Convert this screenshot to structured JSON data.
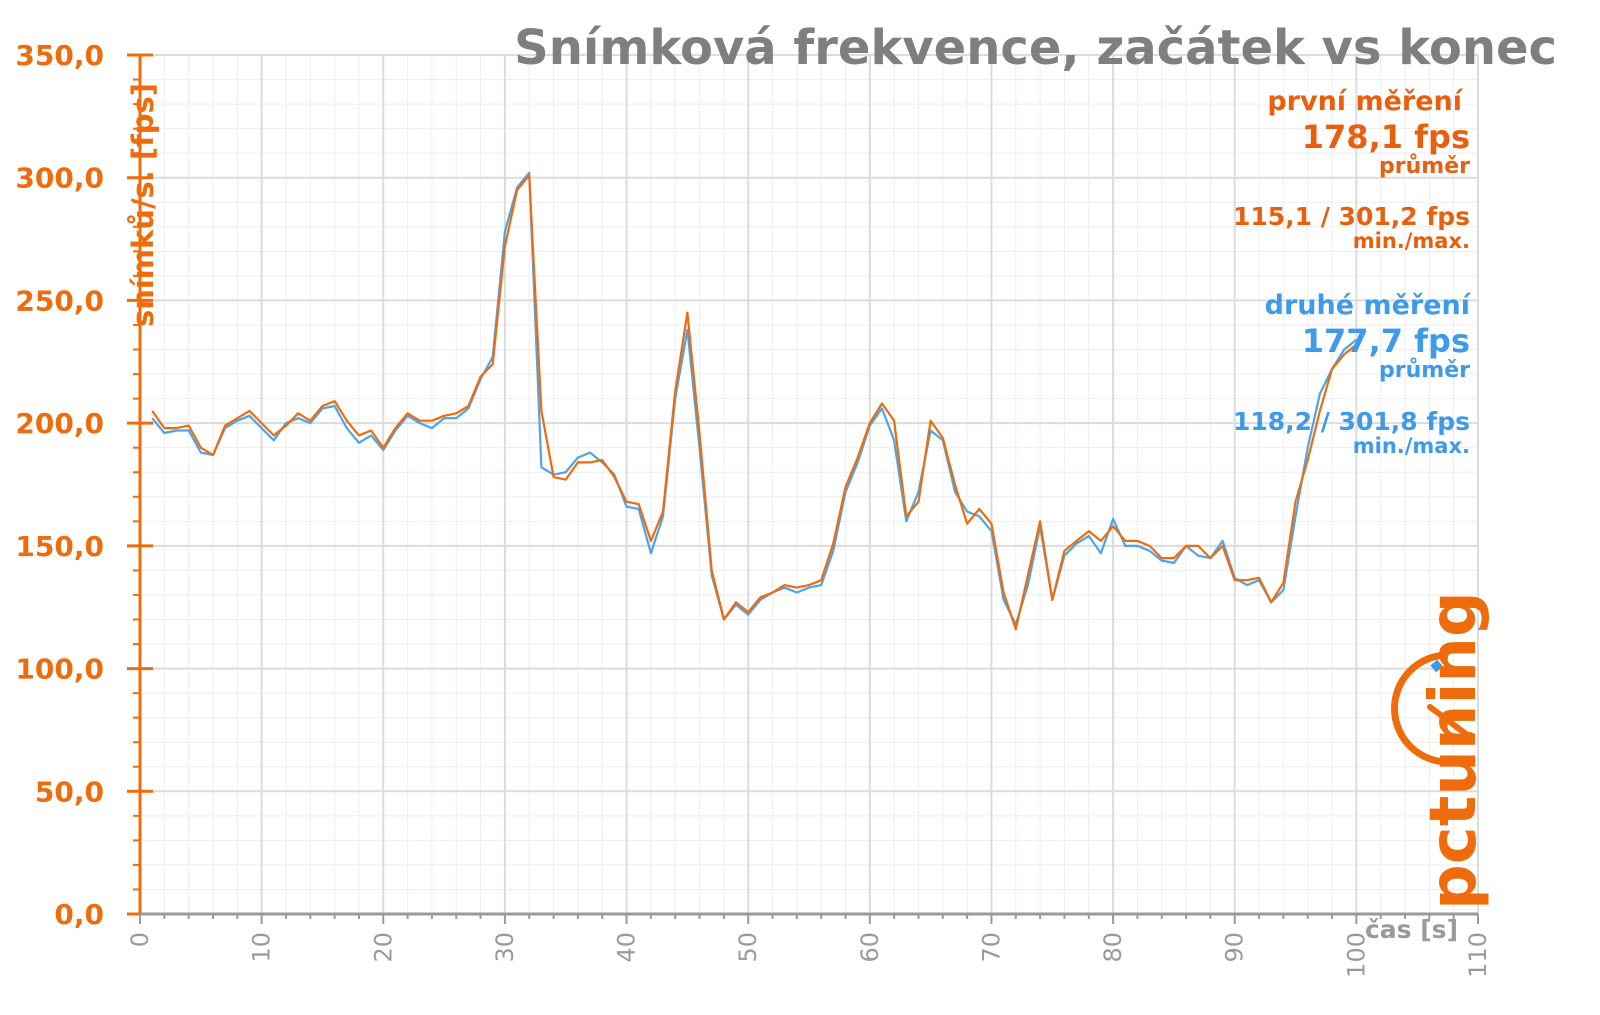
{
  "colors": {
    "first": "#ef6c0c",
    "second": "#4da3ec",
    "grid_major": "#dcdcdc",
    "grid_minor": "#eeeeee",
    "title": "#7f7f7f",
    "x_axis": "#9a9a9a"
  },
  "logo": {
    "text": "pctuning"
  },
  "annotations": {
    "first_label": "první měření",
    "first_avg": "178,1 fps",
    "first_avg_caption": "průměr",
    "first_minmax": "115,1 / 301,2 fps",
    "first_minmax_caption": "min./max.",
    "second_label": "druhé měření",
    "second_avg": "177,7 fps",
    "second_avg_caption": "průměr",
    "second_minmax": "118,2 / 301,8 fps",
    "second_minmax_caption": "min./max."
  },
  "chart_data": {
    "type": "line",
    "title": "Snímková frekvence, začátek vs konec",
    "xlabel": "čas [s]",
    "ylabel": "snímků/s. [fps]",
    "xlim": [
      0,
      110
    ],
    "ylim": [
      0,
      350
    ],
    "xticks": [
      0,
      10,
      20,
      30,
      40,
      50,
      60,
      70,
      80,
      90,
      100,
      110
    ],
    "xtick_labels": [
      "0",
      "10",
      "20",
      "30",
      "40",
      "50",
      "60",
      "70",
      "80",
      "90",
      "100",
      "110"
    ],
    "yticks": [
      0,
      50,
      100,
      150,
      200,
      250,
      300,
      350
    ],
    "ytick_labels": [
      "0,0",
      "50,0",
      "100,0",
      "150,0",
      "200,0",
      "250,0",
      "300,0",
      "350,0"
    ],
    "grid": true,
    "series": [
      {
        "name": "první měření",
        "color": "#ef6c0c",
        "x": [
          1,
          2,
          3,
          4,
          5,
          6,
          7,
          8,
          9,
          10,
          11,
          12,
          13,
          14,
          15,
          16,
          17,
          18,
          19,
          20,
          21,
          22,
          23,
          24,
          25,
          26,
          27,
          28,
          29,
          30,
          31,
          32,
          33,
          34,
          35,
          36,
          37,
          38,
          39,
          40,
          41,
          42,
          43,
          44,
          45,
          46,
          47,
          48,
          49,
          50,
          51,
          52,
          53,
          54,
          55,
          56,
          57,
          58,
          59,
          60,
          61,
          62,
          63,
          64,
          65,
          66,
          67,
          68,
          69,
          70,
          71,
          72,
          73,
          74,
          75,
          76,
          77,
          78,
          79,
          80,
          81,
          82,
          83,
          84,
          85,
          86,
          87,
          88,
          89,
          90,
          91,
          92,
          93,
          94,
          95,
          96,
          97,
          98,
          99,
          100
        ],
        "y": [
          205,
          198,
          198,
          199,
          190,
          187,
          199,
          202,
          205,
          200,
          195,
          199,
          204,
          201,
          207,
          209,
          201,
          195,
          197,
          190,
          198,
          204,
          201,
          201,
          203,
          204,
          207,
          219,
          224,
          272,
          295,
          301,
          205,
          178,
          177,
          184,
          184,
          185,
          178,
          168,
          167,
          152,
          164,
          213,
          245,
          196,
          140,
          120,
          127,
          123,
          129,
          131,
          134,
          133,
          134,
          136,
          151,
          174,
          186,
          200,
          208,
          201,
          162,
          168,
          201,
          194,
          175,
          159,
          165,
          159,
          131,
          116,
          138,
          160,
          128,
          148,
          152,
          156,
          152,
          158,
          152,
          152,
          150,
          145,
          145,
          150,
          150,
          145,
          150,
          136,
          136,
          137,
          127,
          135,
          168,
          185,
          205,
          222,
          228,
          232
        ]
      },
      {
        "name": "druhé měření",
        "color": "#4da3ec",
        "x": [
          1,
          2,
          3,
          4,
          5,
          6,
          7,
          8,
          9,
          10,
          11,
          12,
          13,
          14,
          15,
          16,
          17,
          18,
          19,
          20,
          21,
          22,
          23,
          24,
          25,
          26,
          27,
          28,
          29,
          30,
          31,
          32,
          33,
          34,
          35,
          36,
          37,
          38,
          39,
          40,
          41,
          42,
          43,
          44,
          45,
          46,
          47,
          48,
          49,
          50,
          51,
          52,
          53,
          54,
          55,
          56,
          57,
          58,
          59,
          60,
          61,
          62,
          63,
          64,
          65,
          66,
          67,
          68,
          69,
          70,
          71,
          72,
          73,
          74,
          75,
          76,
          77,
          78,
          79,
          80,
          81,
          82,
          83,
          84,
          85,
          86,
          87,
          88,
          89,
          90,
          91,
          92,
          93,
          94,
          95,
          96,
          97,
          98,
          99,
          100
        ],
        "y": [
          202,
          196,
          197,
          197,
          188,
          187,
          198,
          201,
          203,
          198,
          193,
          200,
          202,
          200,
          206,
          207,
          198,
          192,
          195,
          189,
          197,
          203,
          200,
          198,
          202,
          202,
          206,
          218,
          227,
          278,
          296,
          302,
          182,
          179,
          180,
          186,
          188,
          184,
          179,
          166,
          165,
          147,
          162,
          210,
          238,
          190,
          138,
          120,
          126,
          122,
          128,
          131,
          133,
          131,
          133,
          134,
          148,
          172,
          184,
          199,
          206,
          193,
          160,
          172,
          197,
          193,
          172,
          164,
          162,
          156,
          128,
          118,
          134,
          158,
          128,
          146,
          151,
          154,
          147,
          161,
          150,
          150,
          148,
          144,
          143,
          150,
          146,
          145,
          152,
          137,
          134,
          136,
          127,
          132,
          162,
          190,
          212,
          222,
          230,
          234
        ]
      }
    ]
  }
}
